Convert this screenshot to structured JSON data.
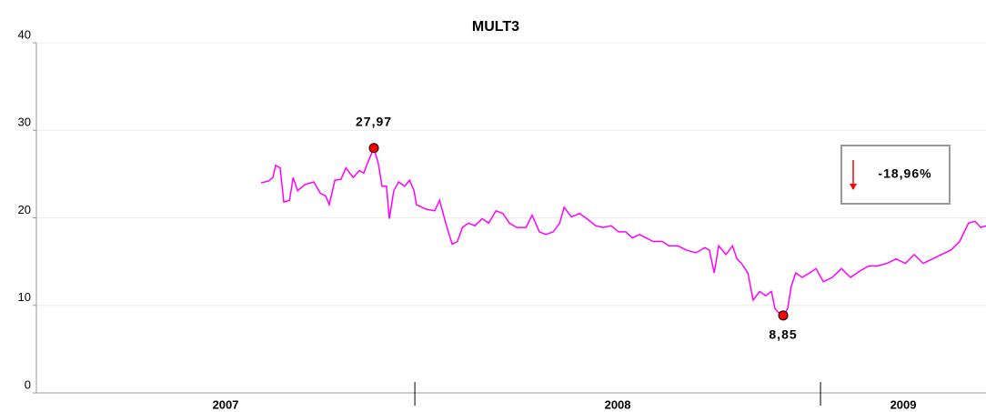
{
  "chart_data": {
    "type": "line",
    "title": "MULT3",
    "xlim": [
      2007.067,
      2009.408
    ],
    "xticks": [
      2007,
      2008,
      2009
    ],
    "ylim": [
      0,
      40
    ],
    "yticks": [
      0,
      10,
      20,
      30,
      40
    ],
    "grid": true,
    "series": [
      {
        "name": "MULT3",
        "color": "#ff00ff",
        "x": [
          2007.621,
          2007.639,
          2007.65,
          2007.657,
          2007.668,
          2007.677,
          2007.691,
          2007.7,
          2007.711,
          2007.729,
          2007.751,
          2007.767,
          2007.78,
          2007.789,
          2007.803,
          2007.818,
          2007.83,
          2007.848,
          2007.863,
          2007.874,
          2007.883,
          2007.892,
          2007.899,
          2007.91,
          2007.919,
          2007.93,
          2007.937,
          2007.948,
          2007.96,
          2007.975,
          2007.987,
          2007.998,
          2008.004,
          2008.027,
          2008.049,
          2008.061,
          2008.076,
          2008.092,
          2008.105,
          2008.117,
          2008.132,
          2008.148,
          2008.166,
          2008.182,
          2008.2,
          2008.217,
          2008.233,
          2008.251,
          2008.274,
          2008.289,
          2008.307,
          2008.323,
          2008.341,
          2008.357,
          2008.368,
          2008.386,
          2008.406,
          2008.424,
          2008.446,
          2008.464,
          2008.484,
          2008.502,
          2008.52,
          2008.536,
          2008.554,
          2008.57,
          2008.587,
          2008.61,
          2008.626,
          2008.648,
          2008.67,
          2008.693,
          2008.715,
          2008.726,
          2008.738,
          2008.749,
          2008.767,
          2008.783,
          2008.794,
          2008.805,
          2008.821,
          2008.834,
          2008.85,
          2008.865,
          2008.879,
          2008.888,
          2008.901,
          2008.908,
          2008.919,
          2008.928,
          2008.939,
          2008.955,
          2008.973,
          2008.989,
          2009.007,
          2009.029,
          2009.052,
          2009.074,
          2009.096,
          2009.119,
          2009.141,
          2009.164,
          2009.186,
          2009.209,
          2009.231,
          2009.253,
          2009.276,
          2009.298,
          2009.321,
          2009.343,
          2009.365,
          2009.381,
          2009.395,
          2009.408
        ],
        "values": [
          24.0,
          24.2,
          24.6,
          26.0,
          25.7,
          21.8,
          22.0,
          24.6,
          23.1,
          23.8,
          24.1,
          22.8,
          22.5,
          21.5,
          24.3,
          24.4,
          25.7,
          24.6,
          25.4,
          25.1,
          26.2,
          27.2,
          27.97,
          26.2,
          23.6,
          23.6,
          19.9,
          23.1,
          24.1,
          23.6,
          24.3,
          23.1,
          21.5,
          21.0,
          20.8,
          22.0,
          19.4,
          17.0,
          17.3,
          18.9,
          19.4,
          19.1,
          19.9,
          19.4,
          20.8,
          20.5,
          19.4,
          18.9,
          18.9,
          20.3,
          18.4,
          18.1,
          18.4,
          19.4,
          21.2,
          20.1,
          20.5,
          19.9,
          19.1,
          18.9,
          19.1,
          18.4,
          18.4,
          17.7,
          18.1,
          17.7,
          17.3,
          17.3,
          16.8,
          16.8,
          16.3,
          16.0,
          16.6,
          16.3,
          13.7,
          16.8,
          15.8,
          16.8,
          15.3,
          14.8,
          13.7,
          10.6,
          11.6,
          11.1,
          11.6,
          9.6,
          9.0,
          8.85,
          9.6,
          12.2,
          13.7,
          13.2,
          13.7,
          14.2,
          12.7,
          13.2,
          14.2,
          13.2,
          13.9,
          14.5,
          14.5,
          14.8,
          15.3,
          14.8,
          15.8,
          14.8,
          15.3,
          15.8,
          16.3,
          17.3,
          19.4,
          19.6,
          18.9,
          19.1
        ],
        "value_labels": [
          null,
          null,
          null,
          null,
          null,
          null,
          null,
          null,
          null,
          null,
          null,
          null,
          null,
          null,
          null,
          null,
          null,
          null,
          null,
          null,
          null,
          null,
          "27,97",
          null,
          null,
          null,
          null,
          null,
          null,
          null,
          null,
          null,
          null,
          null,
          null,
          null,
          null,
          null,
          null,
          null,
          null,
          null,
          null,
          null,
          null,
          null,
          null,
          null,
          null,
          null,
          null,
          null,
          null,
          null,
          null,
          null,
          null,
          null,
          null,
          null,
          null,
          null,
          null,
          null,
          null,
          null,
          null,
          null,
          null,
          null,
          null,
          null,
          null,
          null,
          null,
          null,
          null,
          null,
          null,
          null,
          null,
          null,
          null,
          null,
          null,
          null,
          null,
          "8,85",
          null,
          null,
          null,
          null,
          null,
          null,
          null,
          null,
          null,
          null,
          null,
          null,
          null,
          null,
          null,
          null,
          null,
          null,
          null,
          null,
          null,
          null,
          null,
          null,
          null,
          null
        ]
      }
    ],
    "change": {
      "value": -18.96,
      "label": "-18,96%",
      "color": "#ff0000"
    }
  }
}
